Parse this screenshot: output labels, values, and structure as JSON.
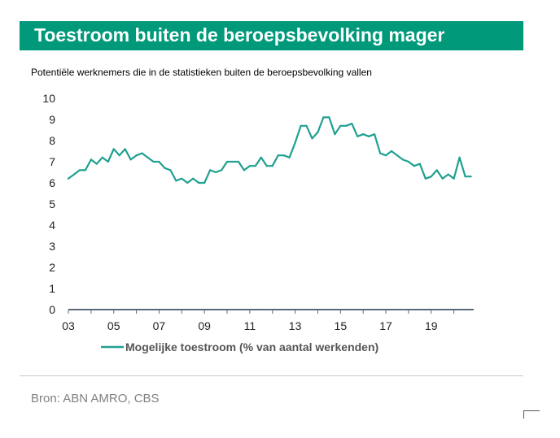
{
  "header": {
    "title": "Toestroom buiten de beroepsbevolking mager",
    "subtitle": "Potentiële werknemers die in de statistieken buiten de beroepsbevolking vallen"
  },
  "footer": {
    "source": "Bron: ABN AMRO, CBS"
  },
  "colors": {
    "accent": "#009a7a",
    "series": "#1fa090",
    "axis": "#5a6a7a"
  },
  "chart_data": {
    "type": "line",
    "title": "Toestroom buiten de beroepsbevolking mager",
    "subtitle": "Potentiële werknemers die in de statistieken buiten de beroepsbevolking vallen",
    "xlabel": "",
    "ylabel": "",
    "ylim": [
      0,
      10
    ],
    "yticks": [
      "0",
      "1",
      "2",
      "3",
      "4",
      "5",
      "6",
      "7",
      "8",
      "9",
      "10"
    ],
    "xlim": [
      2003,
      2020.875
    ],
    "xticks": [
      {
        "value": 2003,
        "label": "03"
      },
      {
        "value": 2005,
        "label": "05"
      },
      {
        "value": 2007,
        "label": "07"
      },
      {
        "value": 2009,
        "label": "09"
      },
      {
        "value": 2011,
        "label": "11"
      },
      {
        "value": 2013,
        "label": "13"
      },
      {
        "value": 2015,
        "label": "15"
      },
      {
        "value": 2017,
        "label": "17"
      },
      {
        "value": 2019,
        "label": "19"
      }
    ],
    "grid": false,
    "legend_position": "bottom",
    "series": [
      {
        "name": "Mogelijke toestroom (% van aantal werkenden)",
        "x": [
          2003.0,
          2003.25,
          2003.5,
          2003.75,
          2004.0,
          2004.25,
          2004.5,
          2004.75,
          2005.0,
          2005.25,
          2005.5,
          2005.75,
          2006.0,
          2006.25,
          2006.5,
          2006.75,
          2007.0,
          2007.25,
          2007.5,
          2007.75,
          2008.0,
          2008.25,
          2008.5,
          2008.75,
          2009.0,
          2009.25,
          2009.5,
          2009.75,
          2010.0,
          2010.25,
          2010.5,
          2010.75,
          2011.0,
          2011.25,
          2011.5,
          2011.75,
          2012.0,
          2012.25,
          2012.5,
          2012.75,
          2013.0,
          2013.25,
          2013.5,
          2013.75,
          2014.0,
          2014.25,
          2014.5,
          2014.75,
          2015.0,
          2015.25,
          2015.5,
          2015.75,
          2016.0,
          2016.25,
          2016.5,
          2016.75,
          2017.0,
          2017.25,
          2017.5,
          2017.75,
          2018.0,
          2018.25,
          2018.5,
          2018.75,
          2019.0,
          2019.25,
          2019.5,
          2019.75,
          2020.0,
          2020.25,
          2020.5,
          2020.75
        ],
        "values": [
          6.2,
          6.4,
          6.6,
          6.6,
          7.1,
          6.9,
          7.2,
          7.0,
          7.6,
          7.3,
          7.6,
          7.1,
          7.3,
          7.4,
          7.2,
          7.0,
          7.0,
          6.7,
          6.6,
          6.1,
          6.2,
          6.0,
          6.2,
          6.0,
          6.0,
          6.6,
          6.5,
          6.6,
          7.0,
          7.0,
          7.0,
          6.6,
          6.8,
          6.8,
          7.2,
          6.8,
          6.8,
          7.3,
          7.3,
          7.2,
          7.9,
          8.7,
          8.7,
          8.1,
          8.4,
          9.1,
          9.1,
          8.3,
          8.7,
          8.7,
          8.8,
          8.2,
          8.3,
          8.2,
          8.3,
          7.4,
          7.3,
          7.5,
          7.3,
          7.1,
          7.0,
          6.8,
          6.9,
          6.2,
          6.3,
          6.6,
          6.2,
          6.4,
          6.2,
          7.2,
          6.3,
          6.3
        ]
      }
    ]
  }
}
